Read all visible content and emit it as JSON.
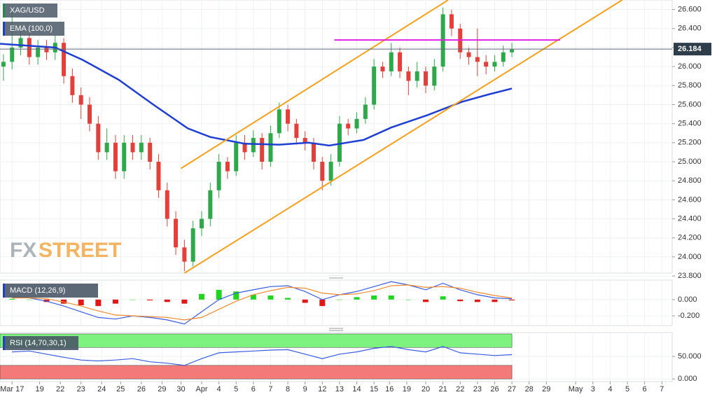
{
  "chart_data": [
    {
      "type": "candlestick",
      "title": "XAG/USD",
      "xlim": [
        -0.7,
        38.3
      ],
      "ylim": [
        23.83,
        26.7
      ],
      "yticks": [
        {
          "value": 23.8,
          "label": "23.800"
        },
        {
          "value": 24.0,
          "label": "24.000"
        },
        {
          "value": 24.2,
          "label": "24.200"
        },
        {
          "value": 24.4,
          "label": "24.400"
        },
        {
          "value": 24.6,
          "label": "24.600"
        },
        {
          "value": 24.8,
          "label": "24.800"
        },
        {
          "value": 25.0,
          "label": "25.000"
        },
        {
          "value": 25.2,
          "label": "25.200"
        },
        {
          "value": 25.4,
          "label": "25.400"
        },
        {
          "value": 25.6,
          "label": "25.600"
        },
        {
          "value": 25.8,
          "label": "25.800"
        },
        {
          "value": 26.0,
          "label": "26.000"
        },
        {
          "value": 26.2,
          "label": "26.200"
        },
        {
          "value": 26.4,
          "label": "26.400"
        },
        {
          "value": 26.6,
          "label": "26.600"
        }
      ],
      "x": [
        -0.5,
        0,
        0.5,
        1,
        1.5,
        2,
        2.5,
        3,
        3.5,
        4,
        4.5,
        5,
        5.5,
        6,
        6.5,
        7,
        7.5,
        8,
        8.5,
        9,
        9.5,
        10,
        10.5,
        11,
        11.5,
        12,
        12.5,
        13,
        13.5,
        14,
        14.5,
        15,
        15.5,
        16,
        16.5,
        17,
        17.5,
        18,
        18.5,
        19,
        19.5,
        20,
        20.5,
        21,
        21.5,
        22,
        22.5,
        23,
        23.5,
        24,
        24.5,
        25,
        25.5,
        26,
        26.5,
        27,
        27.5,
        28,
        28.5,
        29
      ],
      "open": [
        26.0,
        26.05,
        26.2,
        26.3,
        26.1,
        26.2,
        26.15,
        26.25,
        25.9,
        25.7,
        25.6,
        25.4,
        25.1,
        25.2,
        24.9,
        25.2,
        25.1,
        25.2,
        25.0,
        24.7,
        24.4,
        24.1,
        23.95,
        24.3,
        24.4,
        24.7,
        25.0,
        24.9,
        25.2,
        25.1,
        25.25,
        25.0,
        25.3,
        25.55,
        25.4,
        25.25,
        25.2,
        25.0,
        24.8,
        25.0,
        25.4,
        25.35,
        25.45,
        25.6,
        26.0,
        25.95,
        26.15,
        25.95,
        25.85,
        25.95,
        25.8,
        26.0,
        26.55,
        26.4,
        26.15,
        26.1,
        26.05,
        26.0,
        26.05,
        26.15
      ],
      "high": [
        26.13,
        26.6,
        26.38,
        26.38,
        26.28,
        26.28,
        26.33,
        26.3,
        25.98,
        25.78,
        25.68,
        25.48,
        25.35,
        25.28,
        25.28,
        25.28,
        25.28,
        25.25,
        25.08,
        24.78,
        24.48,
        24.18,
        24.38,
        24.48,
        24.78,
        25.08,
        25.05,
        25.28,
        25.28,
        25.33,
        25.3,
        25.38,
        25.62,
        25.6,
        25.45,
        25.32,
        25.25,
        25.05,
        25.08,
        25.48,
        25.45,
        25.52,
        25.68,
        26.08,
        26.05,
        26.25,
        26.2,
        26.0,
        26.05,
        26.0,
        26.08,
        26.62,
        26.6,
        26.45,
        26.2,
        26.4,
        26.12,
        26.12,
        26.22,
        26.25
      ],
      "low": [
        25.85,
        25.97,
        26.12,
        26.02,
        26.02,
        26.07,
        26.07,
        25.82,
        25.62,
        25.45,
        25.32,
        25.02,
        25.02,
        24.82,
        24.82,
        25.02,
        25.02,
        24.92,
        24.62,
        24.32,
        24.02,
        23.85,
        23.9,
        24.22,
        24.32,
        24.62,
        24.82,
        24.85,
        25.02,
        25.05,
        24.92,
        24.95,
        25.25,
        25.32,
        25.18,
        25.12,
        24.92,
        24.7,
        24.75,
        24.95,
        25.28,
        25.3,
        25.4,
        25.55,
        25.88,
        25.9,
        25.88,
        25.7,
        25.78,
        25.72,
        25.75,
        25.95,
        26.32,
        26.08,
        26.02,
        25.9,
        25.92,
        25.95,
        26.0,
        26.1
      ],
      "close": [
        26.05,
        26.2,
        26.3,
        26.1,
        26.2,
        26.15,
        26.25,
        25.9,
        25.7,
        25.6,
        25.4,
        25.1,
        25.2,
        24.9,
        25.2,
        25.1,
        25.2,
        25.0,
        24.7,
        24.4,
        24.1,
        23.95,
        24.3,
        24.4,
        24.7,
        25.0,
        24.9,
        25.2,
        25.1,
        25.25,
        25.0,
        25.3,
        25.55,
        25.4,
        25.25,
        25.2,
        25.0,
        24.8,
        25.0,
        25.4,
        25.35,
        25.45,
        25.6,
        26.0,
        25.95,
        26.15,
        25.95,
        25.85,
        25.95,
        25.8,
        26.0,
        26.55,
        26.4,
        26.15,
        26.1,
        26.05,
        26.0,
        26.05,
        26.15,
        26.18
      ],
      "up_color": "#2ea84a",
      "down_color": "#e2403a",
      "ema": {
        "name": "EMA (100,0)",
        "color": "#1f3fd0",
        "x": [
          -0.7,
          2.5,
          4.1,
          6.2,
          8.2,
          10.2,
          11.5,
          13.5,
          15.5,
          17.2,
          18.4,
          20.4,
          22.0,
          24.1,
          26.1,
          27.7,
          29.0
        ],
        "values": [
          26.24,
          26.2,
          26.07,
          25.86,
          25.6,
          25.35,
          25.26,
          25.19,
          25.18,
          25.2,
          25.17,
          25.23,
          25.36,
          25.49,
          25.63,
          25.71,
          25.77
        ]
      },
      "lines": [
        {
          "color": "#f5a020",
          "x": [
            9.8,
            25.3
          ],
          "values": [
            24.93,
            26.7
          ]
        },
        {
          "color": "#f5a020",
          "x": [
            10.0,
            35.4
          ],
          "values": [
            23.83,
            26.7
          ]
        },
        {
          "color": "#e020e0",
          "x": [
            18.7,
            31.8
          ],
          "values": [
            26.28,
            26.28
          ]
        }
      ],
      "last": 26.184,
      "watermark": [
        "FX",
        "STREET"
      ]
    },
    {
      "type": "macd",
      "title": "MACD (12,26,9)",
      "xlim": [
        -0.7,
        38.3
      ],
      "ylim": [
        -0.32,
        0.24
      ],
      "yticks": [
        {
          "value": 0,
          "label": "0.000"
        },
        {
          "value": -0.2,
          "label": "-0.200"
        }
      ],
      "x": [
        0,
        1,
        2,
        3,
        4,
        5,
        6,
        7,
        8,
        9,
        10,
        11,
        12,
        13,
        14,
        15,
        16,
        17,
        18,
        19,
        20,
        21,
        22,
        23,
        24,
        25,
        26,
        27,
        28,
        29
      ],
      "histogram": [
        0.01,
        0,
        -0.03,
        -0.05,
        -0.07,
        -0.08,
        -0.05,
        0,
        -0.01,
        -0.03,
        -0.05,
        0.07,
        0.12,
        0.1,
        0.06,
        0.05,
        0.02,
        -0.04,
        -0.08,
        0,
        0.03,
        0.05,
        0.05,
        0,
        -0.03,
        0.04,
        -0.02,
        -0.03,
        -0.03,
        -0.01
      ],
      "up_color": "#22d422",
      "down_color": "#e01818",
      "series": [
        {
          "color": "#3a5ce0",
          "values": [
            0.03,
            0.02,
            -0.02,
            -0.08,
            -0.15,
            -0.22,
            -0.24,
            -0.2,
            -0.22,
            -0.25,
            -0.3,
            -0.15,
            0.0,
            0.08,
            0.12,
            0.16,
            0.17,
            0.1,
            0.0,
            0.06,
            0.1,
            0.16,
            0.22,
            0.18,
            0.12,
            0.2,
            0.12,
            0.06,
            0.02,
            0.01
          ]
        },
        {
          "color": "#f08a30",
          "values": [
            0.02,
            0.02,
            0.01,
            -0.03,
            -0.08,
            -0.14,
            -0.19,
            -0.2,
            -0.21,
            -0.22,
            -0.25,
            -0.22,
            -0.12,
            -0.02,
            0.06,
            0.11,
            0.15,
            0.14,
            0.08,
            0.06,
            0.07,
            0.11,
            0.17,
            0.18,
            0.15,
            0.16,
            0.14,
            0.09,
            0.05,
            0.02
          ]
        }
      ]
    },
    {
      "type": "rsi",
      "title": "RSI (14,70,30,1)",
      "xlim": [
        -0.7,
        38.3
      ],
      "ylim": [
        -6,
        103
      ],
      "yticks": [
        {
          "value": 50,
          "label": "50.000"
        },
        {
          "value": 0,
          "label": "0.000"
        }
      ],
      "bands": [
        {
          "range": [
            70,
            100
          ],
          "color": "#7ef27e"
        },
        {
          "range": [
            0,
            30
          ],
          "color": "#f47a7a"
        }
      ],
      "x": [
        0,
        1,
        2,
        3,
        4,
        5,
        6,
        7,
        8,
        9,
        10,
        11,
        12,
        13,
        14,
        15,
        16,
        17,
        18,
        19,
        20,
        21,
        22,
        23,
        24,
        25,
        26,
        27,
        28,
        29
      ],
      "values": [
        60,
        62,
        55,
        48,
        42,
        40,
        42,
        45,
        38,
        35,
        30,
        45,
        58,
        60,
        62,
        64,
        65,
        55,
        45,
        55,
        60,
        68,
        72,
        65,
        60,
        72,
        58,
        55,
        52,
        54
      ],
      "color": "#3a5ce0",
      "xticks": [
        {
          "value": 0,
          "label": "Mar 17"
        },
        {
          "value": 1.6,
          "label": "19"
        },
        {
          "value": 2.8,
          "label": "22"
        },
        {
          "value": 4.0,
          "label": "23"
        },
        {
          "value": 5.2,
          "label": "24"
        },
        {
          "value": 6.3,
          "label": "25"
        },
        {
          "value": 7.5,
          "label": "26"
        },
        {
          "value": 8.7,
          "label": "29"
        },
        {
          "value": 9.8,
          "label": "30"
        },
        {
          "value": 11.0,
          "label": "Apr"
        },
        {
          "value": 12.0,
          "label": "4"
        },
        {
          "value": 13.0,
          "label": "5"
        },
        {
          "value": 14.0,
          "label": "6"
        },
        {
          "value": 15.0,
          "label": "7"
        },
        {
          "value": 16.0,
          "label": "8"
        },
        {
          "value": 17.0,
          "label": "9"
        },
        {
          "value": 18.0,
          "label": "12"
        },
        {
          "value": 19.0,
          "label": "13"
        },
        {
          "value": 20.0,
          "label": "14"
        },
        {
          "value": 21.0,
          "label": "15"
        },
        {
          "value": 21.9,
          "label": "16"
        },
        {
          "value": 22.9,
          "label": "19"
        },
        {
          "value": 24.0,
          "label": "20"
        },
        {
          "value": 25.0,
          "label": "21"
        },
        {
          "value": 26.0,
          "label": "22"
        },
        {
          "value": 27.0,
          "label": "23"
        },
        {
          "value": 28.0,
          "label": "26"
        },
        {
          "value": 29.0,
          "label": "27"
        },
        {
          "value": 30.0,
          "label": "28"
        },
        {
          "value": 31.0,
          "label": "29"
        },
        {
          "value": 32.7,
          "label": "May"
        },
        {
          "value": 33.7,
          "label": "3"
        },
        {
          "value": 34.7,
          "label": "4"
        },
        {
          "value": 35.7,
          "label": "5"
        },
        {
          "value": 36.7,
          "label": "6"
        },
        {
          "value": 37.7,
          "label": "7"
        }
      ]
    }
  ]
}
